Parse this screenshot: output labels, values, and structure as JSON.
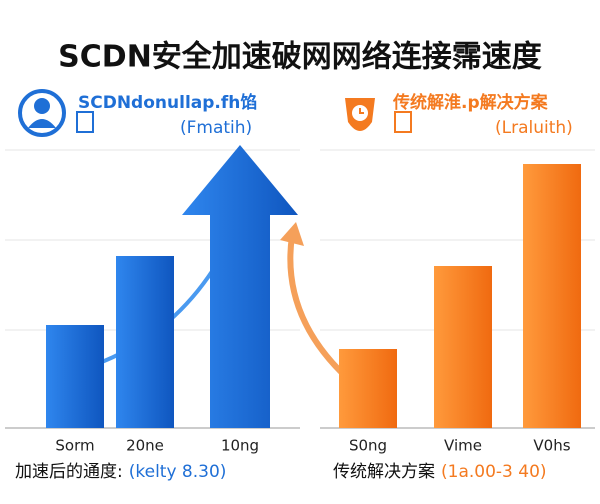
{
  "title": "SCDN安全加速破网网络连接霈速度",
  "chart_data": [
    {
      "type": "bar",
      "title": "SCDNdonullap.fh馅",
      "subtitle": "(Fmatih)",
      "categories": [
        "Sorm",
        "20ne",
        "10ng"
      ],
      "values": [
        103,
        172,
        283
      ],
      "color": "#1f6fd6",
      "ylim": [
        0,
        300
      ],
      "caption": "加速后的通度:",
      "caption_value": "(kelty 8.30)"
    },
    {
      "type": "bar",
      "title": "传统解淮.p解决方案",
      "subtitle": "(Lraluith)",
      "categories": [
        "S0ng",
        "Vime",
        "V0hs"
      ],
      "values": [
        79,
        162,
        264
      ],
      "color": "#f47a20",
      "ylim": [
        0,
        300
      ],
      "caption": "传统解决方案",
      "caption_value": "(1a.00-3 40)"
    }
  ]
}
